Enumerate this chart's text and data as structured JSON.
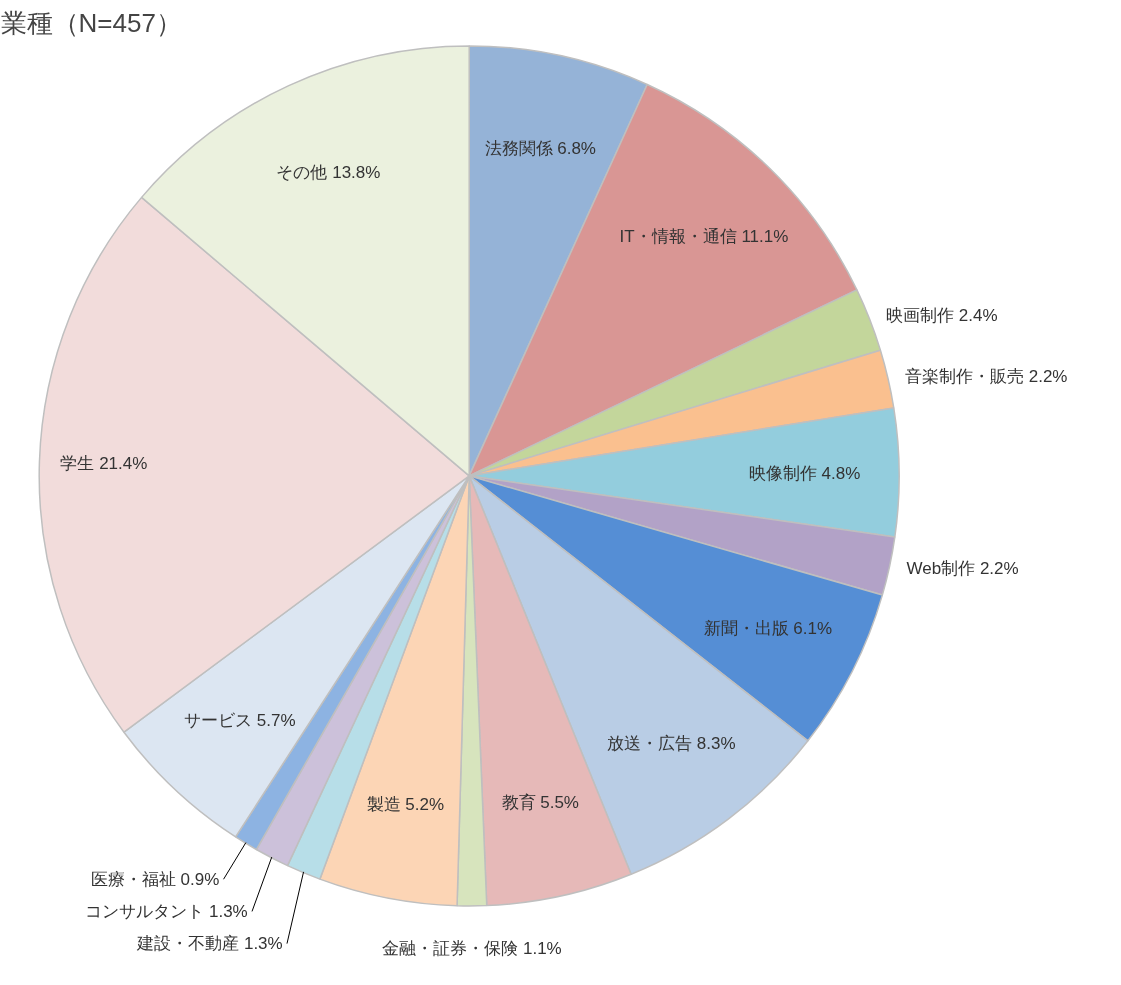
{
  "chart_data": {
    "type": "pie",
    "title": "業種（N=457）",
    "value_labels": [
      "6.8%",
      "11.1%",
      "2.4%",
      "2.2%",
      "4.8%",
      "2.2%",
      "6.1%",
      "8.3%",
      "5.5%",
      "1.1%",
      "5.2%",
      "1.3%",
      "1.3%",
      "0.9%",
      "5.7%",
      "21.4%",
      "13.8%"
    ],
    "categories": [
      "法務関係",
      "IT・情報・通信",
      "映画制作",
      "音楽制作・販売",
      "映像制作",
      "Web制作",
      "新聞・出版",
      "放送・広告",
      "教育",
      "金融・証券・保険",
      "製造",
      "建設・不動産",
      "コンサルタント",
      "医療・福祉",
      "サービス",
      "学生",
      "その他"
    ],
    "values": [
      6.8,
      11.1,
      2.4,
      2.2,
      4.8,
      2.2,
      6.1,
      8.3,
      5.5,
      1.1,
      5.2,
      1.3,
      1.3,
      0.9,
      5.7,
      21.4,
      13.8
    ],
    "colors": [
      "#95b3d7",
      "#d99694",
      "#c3d69b",
      "#fac08f",
      "#93cddd",
      "#b2a2c7",
      "#558ed5",
      "#b9cde5",
      "#e6b9b8",
      "#d7e4bd",
      "#fcd5b5",
      "#b7dee8",
      "#ccc1da",
      "#8db3e2",
      "#dce6f2",
      "#f2dcdb",
      "#ebf1de"
    ]
  }
}
